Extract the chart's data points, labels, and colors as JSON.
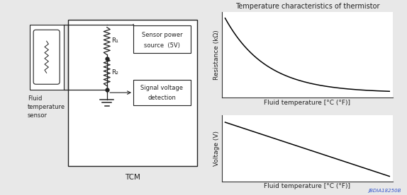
{
  "bg_color": "#e8e8e8",
  "inner_bg": "#ffffff",
  "line_color": "#222222",
  "text_color": "#222222",
  "title_text": "Temperature characteristics of thermistor",
  "top_ylabel": "Resistance (kΩ)",
  "top_xlabel": "Fluid temperature [°C (°F)]",
  "bot_ylabel": "Voltage (V)",
  "bot_xlabel": "Fluid temperature [°C (°F)]",
  "watermark": "JBDIA18250B",
  "watermark_color": "#3355cc",
  "font_size": 6.5,
  "title_font_size": 7.0
}
